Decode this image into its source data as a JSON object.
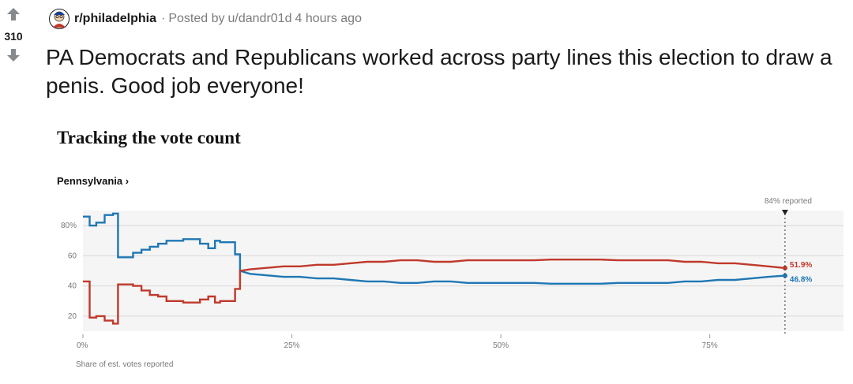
{
  "post": {
    "score": "310",
    "subreddit": "r/philadelphia",
    "separator": "·",
    "posted_by_prefix": "Posted by",
    "username": "u/dandr01d",
    "time_ago": "4 hours ago",
    "title": "PA Democrats and Republicans worked across party lines this election to draw a penis. Good job everyone!",
    "icons": [
      "upvote-arrow-icon",
      "downvote-arrow-icon",
      "subreddit-avatar-icon"
    ]
  },
  "chart_data": {
    "type": "line",
    "title": "Tracking the vote count",
    "subtitle": "Pennsylvania ›",
    "xlabel": "Share of est. votes reported",
    "ylabel": "",
    "xlim": [
      0,
      91
    ],
    "ylim": [
      10,
      90
    ],
    "x_ticks": [
      0,
      25,
      50,
      75
    ],
    "x_tick_labels": [
      "0%",
      "25%",
      "50%",
      "75%"
    ],
    "y_ticks": [
      20,
      40,
      60,
      80
    ],
    "y_tick_labels": [
      "20",
      "40",
      "60",
      "80%"
    ],
    "grid": "horizontal",
    "annotation": {
      "x": 84,
      "label": "84% reported"
    },
    "series": [
      {
        "color": "#1f77b4",
        "end_label": "46.8%",
        "x": [
          0,
          0.8,
          0.8,
          1.6,
          1.6,
          2.6,
          2.6,
          3.6,
          3.6,
          4.2,
          4.2,
          6,
          6,
          7,
          7,
          8,
          8,
          9,
          9,
          10,
          10,
          12,
          12,
          14,
          14,
          15,
          15,
          15.8,
          15.8,
          16.4,
          16.4,
          18.2,
          18.2,
          18.8,
          18.8,
          20,
          22,
          24,
          26,
          28,
          30,
          32,
          34,
          36,
          38,
          40,
          42,
          44,
          46,
          48,
          50,
          52,
          54,
          56,
          58,
          60,
          62,
          64,
          66,
          68,
          70,
          72,
          74,
          76,
          78,
          80,
          82,
          84
        ],
        "values": [
          86,
          86,
          80,
          80,
          82,
          82,
          87,
          87,
          88,
          88,
          59,
          59,
          62,
          62,
          64,
          64,
          66,
          66,
          68,
          68,
          70,
          70,
          71,
          71,
          68,
          68,
          65,
          65,
          70,
          70,
          69,
          69,
          61,
          61,
          50,
          48,
          47,
          46,
          46,
          45,
          45,
          44,
          43,
          43,
          42,
          42,
          43,
          43,
          42,
          42,
          42,
          42,
          42,
          41.5,
          41.5,
          41.5,
          41.5,
          42,
          42,
          42,
          42,
          43,
          43,
          44,
          44,
          45,
          46,
          46.8
        ]
      },
      {
        "color": "#c0392b",
        "end_label": "51.9%",
        "x": [
          0,
          0.8,
          0.8,
          1.6,
          1.6,
          2.6,
          2.6,
          3.6,
          3.6,
          4.2,
          4.2,
          6,
          6,
          7,
          7,
          8,
          8,
          9,
          9,
          10,
          10,
          12,
          12,
          14,
          14,
          15,
          15,
          15.8,
          15.8,
          16.4,
          16.4,
          18.2,
          18.2,
          18.8,
          18.8,
          20,
          22,
          24,
          26,
          28,
          30,
          32,
          34,
          36,
          38,
          40,
          42,
          44,
          46,
          48,
          50,
          52,
          54,
          56,
          58,
          60,
          62,
          64,
          66,
          68,
          70,
          72,
          74,
          76,
          78,
          80,
          82,
          84
        ],
        "values": [
          43,
          43,
          19,
          19,
          20,
          20,
          17,
          17,
          15,
          15,
          41,
          41,
          40,
          40,
          37,
          37,
          34,
          34,
          33,
          33,
          30,
          30,
          29,
          29,
          31,
          31,
          33,
          33,
          29,
          29,
          30,
          30,
          38,
          38,
          50,
          51,
          52,
          53,
          53,
          54,
          54,
          55,
          56,
          56,
          57,
          57,
          56,
          56,
          57,
          57,
          57,
          57,
          57,
          57.5,
          57.5,
          57.5,
          57.5,
          57,
          57,
          57,
          57,
          56,
          56,
          55,
          55,
          54,
          53,
          51.9
        ]
      }
    ]
  }
}
